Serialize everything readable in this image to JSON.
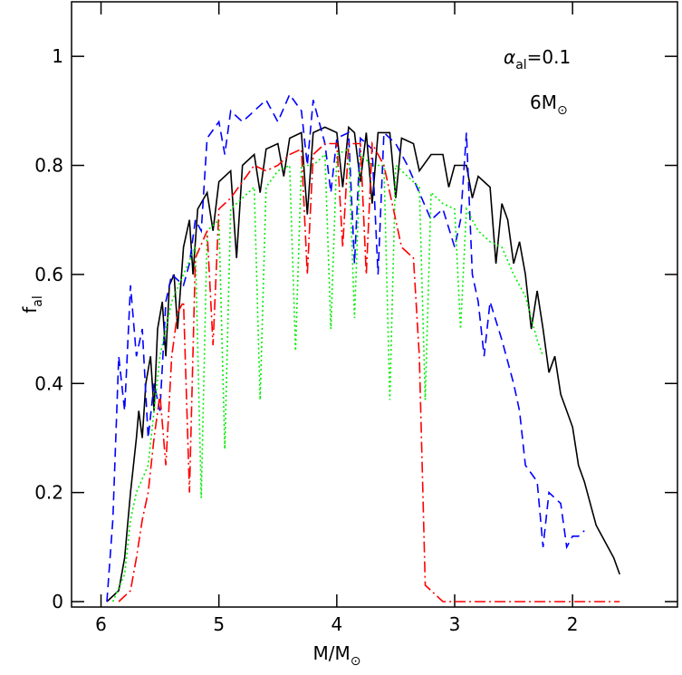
{
  "chart_data": {
    "type": "line",
    "annotations": [
      {
        "symbol": "α",
        "sub": "al",
        "text": "=0.1"
      },
      {
        "text": "6M",
        "sub": "⊙"
      }
    ],
    "xlabel": {
      "text": "M/M",
      "sub": "⊙"
    },
    "ylabel": {
      "text": "f",
      "sub": "al"
    },
    "xlim": [
      6.25,
      1.11
    ],
    "ylim": [
      -0.01,
      1.1
    ],
    "xticks": [
      6,
      5,
      4,
      3,
      2
    ],
    "yticks": [
      0,
      0.2,
      0.4,
      0.6,
      0.8,
      1
    ],
    "series": [
      {
        "color": "#000000",
        "dash": "none",
        "x": [
          5.95,
          5.85,
          5.8,
          5.75,
          5.7,
          5.68,
          5.65,
          5.62,
          5.58,
          5.55,
          5.52,
          5.48,
          5.45,
          5.42,
          5.38,
          5.35,
          5.3,
          5.25,
          5.22,
          5.18,
          5.1,
          5.05,
          5.0,
          4.9,
          4.85,
          4.8,
          4.7,
          4.65,
          4.6,
          4.5,
          4.45,
          4.4,
          4.3,
          4.25,
          4.2,
          4.1,
          4.0,
          3.95,
          3.9,
          3.85,
          3.8,
          3.75,
          3.7,
          3.65,
          3.55,
          3.5,
          3.45,
          3.35,
          3.3,
          3.2,
          3.1,
          3.05,
          3.0,
          2.9,
          2.85,
          2.8,
          2.7,
          2.65,
          2.6,
          2.55,
          2.5,
          2.45,
          2.4,
          2.35,
          2.3,
          2.25,
          2.2,
          2.15,
          2.1,
          2.05,
          2.0,
          1.95,
          1.9,
          1.85,
          1.8,
          1.75,
          1.7,
          1.65,
          1.6
        ],
        "values": [
          0,
          0.02,
          0.08,
          0.2,
          0.3,
          0.35,
          0.3,
          0.4,
          0.45,
          0.35,
          0.5,
          0.55,
          0.45,
          0.58,
          0.6,
          0.5,
          0.65,
          0.7,
          0.6,
          0.72,
          0.75,
          0.68,
          0.77,
          0.79,
          0.63,
          0.8,
          0.82,
          0.75,
          0.83,
          0.84,
          0.78,
          0.85,
          0.86,
          0.71,
          0.86,
          0.87,
          0.86,
          0.76,
          0.87,
          0.86,
          0.77,
          0.86,
          0.73,
          0.86,
          0.86,
          0.74,
          0.85,
          0.84,
          0.79,
          0.82,
          0.82,
          0.76,
          0.8,
          0.8,
          0.74,
          0.78,
          0.76,
          0.62,
          0.73,
          0.7,
          0.62,
          0.66,
          0.6,
          0.5,
          0.57,
          0.5,
          0.42,
          0.45,
          0.38,
          0.35,
          0.32,
          0.25,
          0.22,
          0.18,
          0.14,
          0.12,
          0.1,
          0.08,
          0.05
        ]
      },
      {
        "color": "#0000ff",
        "dash": "10,6",
        "x": [
          5.95,
          5.9,
          5.85,
          5.8,
          5.75,
          5.7,
          5.65,
          5.6,
          5.55,
          5.5,
          5.45,
          5.4,
          5.3,
          5.25,
          5.2,
          5.15,
          5.1,
          5.0,
          4.95,
          4.9,
          4.8,
          4.7,
          4.6,
          4.5,
          4.4,
          4.3,
          4.25,
          4.2,
          4.15,
          4.1,
          4.05,
          4.0,
          3.9,
          3.85,
          3.8,
          3.7,
          3.65,
          3.6,
          3.5,
          3.4,
          3.3,
          3.2,
          3.1,
          3.0,
          2.95,
          2.9,
          2.85,
          2.8,
          2.75,
          2.7,
          2.6,
          2.5,
          2.45,
          2.4,
          2.3,
          2.25,
          2.2,
          2.1,
          2.05,
          2.0,
          1.95,
          1.9
        ],
        "values": [
          0,
          0.15,
          0.45,
          0.35,
          0.58,
          0.45,
          0.5,
          0.3,
          0.4,
          0.35,
          0.55,
          0.6,
          0.58,
          0.62,
          0.7,
          0.68,
          0.85,
          0.88,
          0.82,
          0.9,
          0.88,
          0.9,
          0.92,
          0.88,
          0.93,
          0.9,
          0.8,
          0.92,
          0.88,
          0.84,
          0.75,
          0.85,
          0.86,
          0.62,
          0.85,
          0.83,
          0.6,
          0.86,
          0.84,
          0.8,
          0.75,
          0.7,
          0.72,
          0.65,
          0.7,
          0.86,
          0.6,
          0.55,
          0.45,
          0.55,
          0.48,
          0.4,
          0.35,
          0.25,
          0.22,
          0.1,
          0.2,
          0.18,
          0.1,
          0.12,
          0.12,
          0.13
        ]
      },
      {
        "color": "#00ee00",
        "dash": "2,3",
        "x": [
          5.9,
          5.8,
          5.75,
          5.7,
          5.6,
          5.5,
          5.45,
          5.4,
          5.3,
          5.2,
          5.15,
          5.1,
          5.0,
          4.95,
          4.9,
          4.8,
          4.7,
          4.65,
          4.6,
          4.5,
          4.4,
          4.35,
          4.3,
          4.2,
          4.1,
          4.05,
          4.0,
          3.9,
          3.85,
          3.8,
          3.7,
          3.6,
          3.55,
          3.5,
          3.4,
          3.3,
          3.25,
          3.2,
          3.1,
          3.0,
          2.95,
          2.9,
          2.8,
          2.7,
          2.6,
          2.5,
          2.4,
          2.3,
          2.25
        ],
        "values": [
          0,
          0.05,
          0.15,
          0.2,
          0.25,
          0.45,
          0.5,
          0.55,
          0.6,
          0.65,
          0.19,
          0.68,
          0.7,
          0.28,
          0.72,
          0.74,
          0.76,
          0.37,
          0.76,
          0.79,
          0.8,
          0.46,
          0.8,
          0.8,
          0.82,
          0.5,
          0.82,
          0.83,
          0.52,
          0.82,
          0.8,
          0.8,
          0.37,
          0.8,
          0.78,
          0.76,
          0.37,
          0.75,
          0.73,
          0.72,
          0.5,
          0.72,
          0.68,
          0.66,
          0.65,
          0.6,
          0.56,
          0.48,
          0.45
        ]
      },
      {
        "color": "#ff0000",
        "dash": "12,4,2,4",
        "x": [
          5.85,
          5.75,
          5.7,
          5.65,
          5.6,
          5.55,
          5.5,
          5.45,
          5.4,
          5.35,
          5.3,
          5.25,
          5.2,
          5.1,
          5.05,
          5.0,
          4.9,
          4.8,
          4.7,
          4.6,
          4.5,
          4.4,
          4.3,
          4.25,
          4.2,
          4.1,
          4.0,
          3.95,
          3.9,
          3.8,
          3.75,
          3.7,
          3.6,
          3.5,
          3.45,
          3.35,
          3.3,
          3.27,
          3.25,
          3.2,
          3.1,
          3.0,
          2.5,
          2.0,
          1.6
        ],
        "values": [
          0,
          0.02,
          0.08,
          0.15,
          0.2,
          0.3,
          0.38,
          0.25,
          0.45,
          0.53,
          0.55,
          0.2,
          0.63,
          0.68,
          0.47,
          0.72,
          0.74,
          0.77,
          0.8,
          0.79,
          0.8,
          0.82,
          0.83,
          0.6,
          0.82,
          0.84,
          0.84,
          0.65,
          0.84,
          0.84,
          0.6,
          0.84,
          0.8,
          0.7,
          0.65,
          0.63,
          0.45,
          0.2,
          0.03,
          0.02,
          0,
          0,
          0,
          0,
          0
        ]
      }
    ]
  }
}
